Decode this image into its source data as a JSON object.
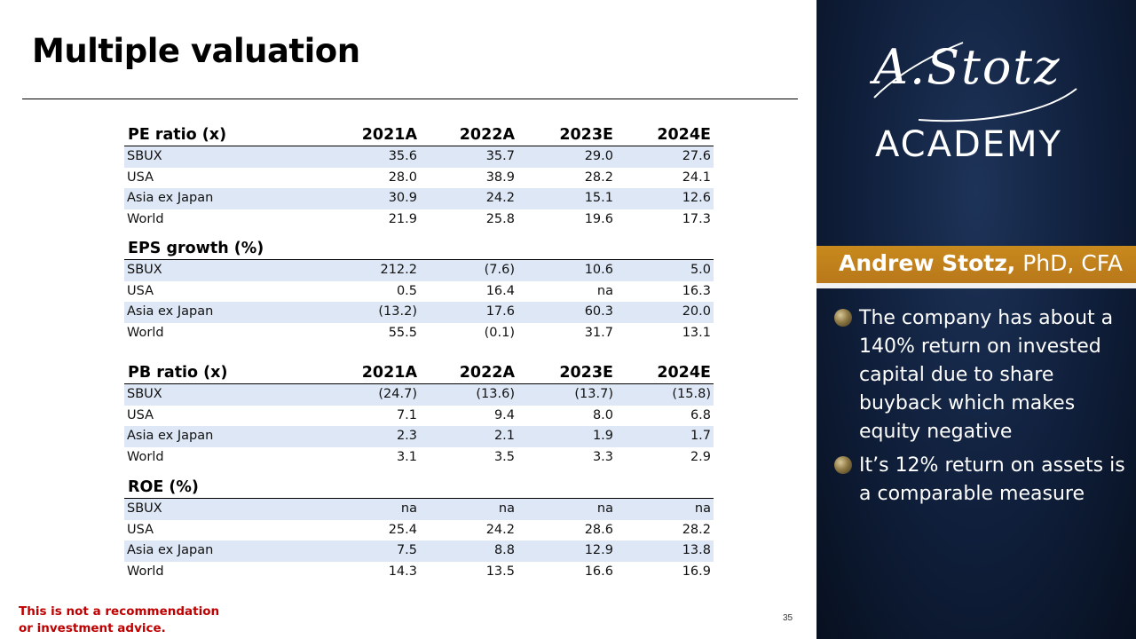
{
  "title": "Multiple valuation",
  "columns": [
    "2021A",
    "2022A",
    "2023E",
    "2024E"
  ],
  "sections": {
    "pe": {
      "label": "PE ratio (x)",
      "rows": [
        {
          "name": "SBUX",
          "values": [
            "35.6",
            "35.7",
            "29.0",
            "27.6"
          ]
        },
        {
          "name": "USA",
          "values": [
            "28.0",
            "38.9",
            "28.2",
            "24.1"
          ]
        },
        {
          "name": "Asia ex Japan",
          "values": [
            "30.9",
            "24.2",
            "15.1",
            "12.6"
          ]
        },
        {
          "name": "World",
          "values": [
            "21.9",
            "25.8",
            "19.6",
            "17.3"
          ]
        }
      ]
    },
    "eps": {
      "label": "EPS growth (%)",
      "rows": [
        {
          "name": "SBUX",
          "values": [
            "212.2",
            "(7.6)",
            "10.6",
            "5.0"
          ]
        },
        {
          "name": "USA",
          "values": [
            "0.5",
            "16.4",
            "na",
            "16.3"
          ]
        },
        {
          "name": "Asia ex Japan",
          "values": [
            "(13.2)",
            "17.6",
            "60.3",
            "20.0"
          ]
        },
        {
          "name": "World",
          "values": [
            "55.5",
            "(0.1)",
            "31.7",
            "13.1"
          ]
        }
      ]
    },
    "pb": {
      "label": "PB ratio (x)",
      "rows": [
        {
          "name": "SBUX",
          "values": [
            "(24.7)",
            "(13.6)",
            "(13.7)",
            "(15.8)"
          ]
        },
        {
          "name": "USA",
          "values": [
            "7.1",
            "9.4",
            "8.0",
            "6.8"
          ]
        },
        {
          "name": "Asia ex Japan",
          "values": [
            "2.3",
            "2.1",
            "1.9",
            "1.7"
          ]
        },
        {
          "name": "World",
          "values": [
            "3.1",
            "3.5",
            "3.3",
            "2.9"
          ]
        }
      ]
    },
    "roe": {
      "label": "ROE (%)",
      "rows": [
        {
          "name": "SBUX",
          "values": [
            "na",
            "na",
            "na",
            "na"
          ]
        },
        {
          "name": "USA",
          "values": [
            "25.4",
            "24.2",
            "28.6",
            "28.2"
          ]
        },
        {
          "name": "Asia ex Japan",
          "values": [
            "7.5",
            "8.8",
            "12.9",
            "13.8"
          ]
        },
        {
          "name": "World",
          "values": [
            "14.3",
            "13.5",
            "16.6",
            "16.9"
          ]
        }
      ]
    }
  },
  "disclaimer": {
    "line1": "This is not a recommendation",
    "line2": "or investment advice."
  },
  "page_number": "35",
  "sidebar": {
    "logo_script": "A.Stotz",
    "logo_word": "ACADEMY",
    "presenter_name": "Andrew Stotz,",
    "presenter_credentials": " PhD, CFA",
    "bullets": [
      "The company has about a 140% return on invested capital due to share buyback which makes equity negative",
      "It’s 12% return on assets is a comparable measure"
    ]
  },
  "colors": {
    "row_shade": "#dde7f5",
    "band": "#c8891d",
    "sidebar_bg": "#0f1e3a",
    "disclaimer": "#c00000"
  }
}
